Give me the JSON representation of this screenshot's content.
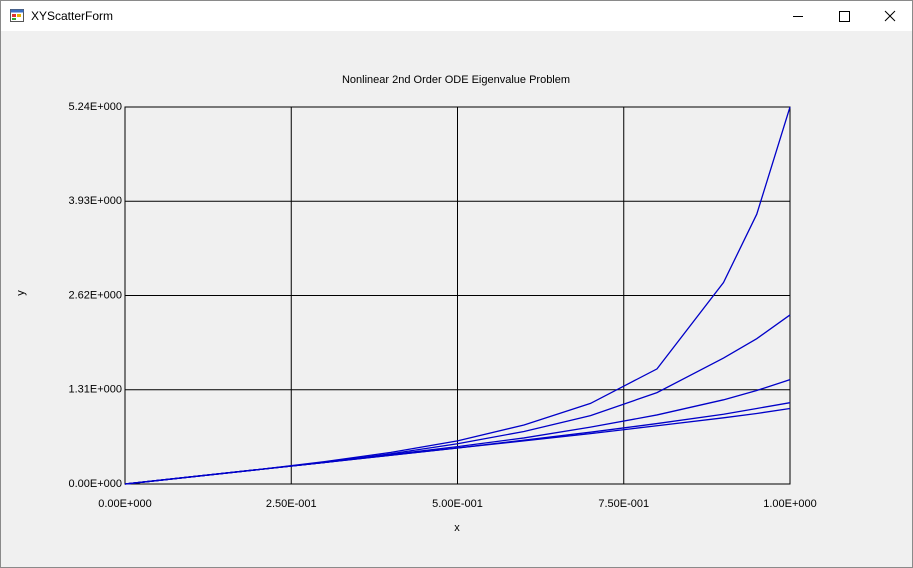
{
  "window": {
    "title": "XYScatterForm"
  },
  "chart_data": {
    "type": "line",
    "title": "Nonlinear 2nd Order ODE Eigenvalue Problem",
    "x_label": "x",
    "y_label": "y",
    "x": [
      0,
      0.1,
      0.2,
      0.3,
      0.4,
      0.5,
      0.6,
      0.7,
      0.8,
      0.9,
      0.95,
      1.0
    ],
    "series": [
      {
        "color": "#0000c8",
        "values": [
          0,
          0.1,
          0.2,
          0.31,
          0.44,
          0.6,
          0.82,
          1.12,
          1.6,
          2.8,
          3.75,
          5.24
        ]
      },
      {
        "color": "#0000c8",
        "values": [
          0,
          0.1,
          0.2,
          0.3,
          0.42,
          0.56,
          0.73,
          0.95,
          1.27,
          1.75,
          2.02,
          2.35
        ]
      },
      {
        "color": "#0000c8",
        "values": [
          0,
          0.1,
          0.2,
          0.3,
          0.41,
          0.52,
          0.64,
          0.79,
          0.96,
          1.17,
          1.3,
          1.45
        ]
      },
      {
        "color": "#0000c8",
        "values": [
          0,
          0.1,
          0.2,
          0.3,
          0.4,
          0.5,
          0.61,
          0.72,
          0.84,
          0.97,
          1.05,
          1.13
        ]
      },
      {
        "color": "#0000c8",
        "values": [
          0,
          0.1,
          0.2,
          0.3,
          0.4,
          0.5,
          0.6,
          0.7,
          0.81,
          0.92,
          0.98,
          1.05
        ]
      }
    ],
    "xlim": [
      0,
      1.0
    ],
    "ylim": [
      0,
      5.24
    ],
    "xticks": [
      {
        "value": 0,
        "label": "0.00E+000"
      },
      {
        "value": 0.25,
        "label": "2.50E-001"
      },
      {
        "value": 0.5,
        "label": "5.00E-001"
      },
      {
        "value": 0.75,
        "label": "7.50E-001"
      },
      {
        "value": 1.0,
        "label": "1.00E+000"
      }
    ],
    "yticks": [
      {
        "value": 0,
        "label": "0.00E+000"
      },
      {
        "value": 1.31,
        "label": "1.31E+000"
      },
      {
        "value": 2.62,
        "label": "2.62E+000"
      },
      {
        "value": 3.93,
        "label": "3.93E+000"
      },
      {
        "value": 5.24,
        "label": "5.24E+000"
      }
    ],
    "grid": true
  }
}
